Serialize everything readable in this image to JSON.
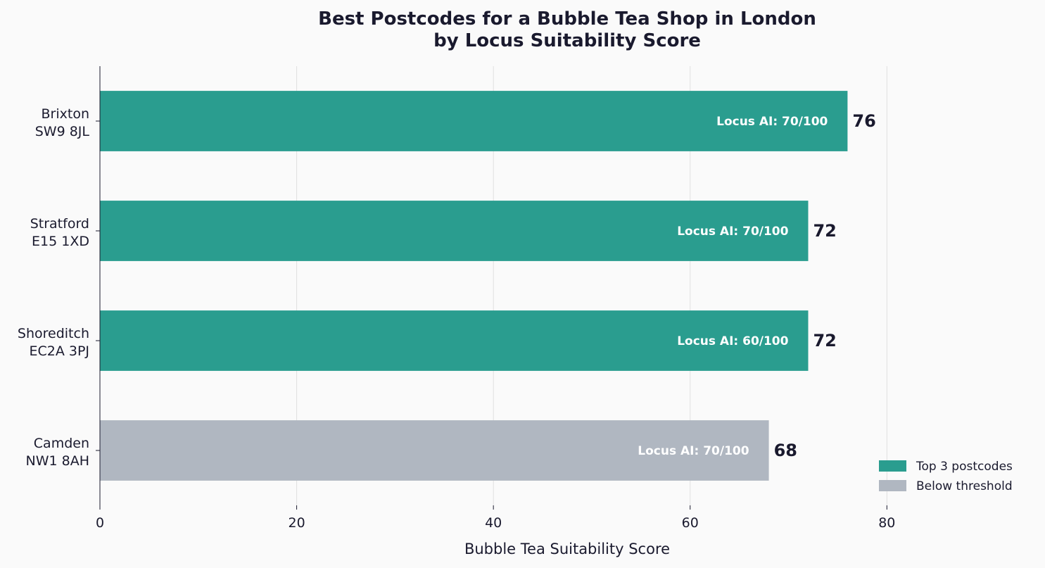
{
  "chart_data": {
    "type": "bar",
    "orientation": "horizontal",
    "title_lines": [
      "Best Postcodes for a Bubble Tea Shop in London",
      "by Locus Suitability Score"
    ],
    "xlabel": "Bubble Tea Suitability Score",
    "ylabel": "",
    "xlim": [
      0,
      95
    ],
    "x_ticks": [
      0,
      20,
      40,
      60,
      80
    ],
    "grid": true,
    "categories": [
      {
        "name": "Brixton",
        "postcode": "SW9 8JL"
      },
      {
        "name": "Stratford",
        "postcode": "E15 1XD"
      },
      {
        "name": "Shoreditch",
        "postcode": "EC2A 3PJ"
      },
      {
        "name": "Camden",
        "postcode": "NW1 8AH"
      }
    ],
    "values": [
      76,
      72,
      72,
      68
    ],
    "value_labels": [
      "76",
      "72",
      "72",
      "68"
    ],
    "inner_labels": [
      "Locus AI: 70/100",
      "Locus AI: 70/100",
      "Locus AI: 60/100",
      "Locus AI: 70/100"
    ],
    "groups": [
      "top",
      "top",
      "top",
      "below"
    ],
    "colors": {
      "top": "#2a9d8f",
      "below": "#b0b7c1"
    },
    "legend": {
      "position": "lower-right",
      "items": [
        {
          "label": "Top 3 postcodes",
          "group": "top"
        },
        {
          "label": "Below threshold",
          "group": "below"
        }
      ]
    }
  }
}
